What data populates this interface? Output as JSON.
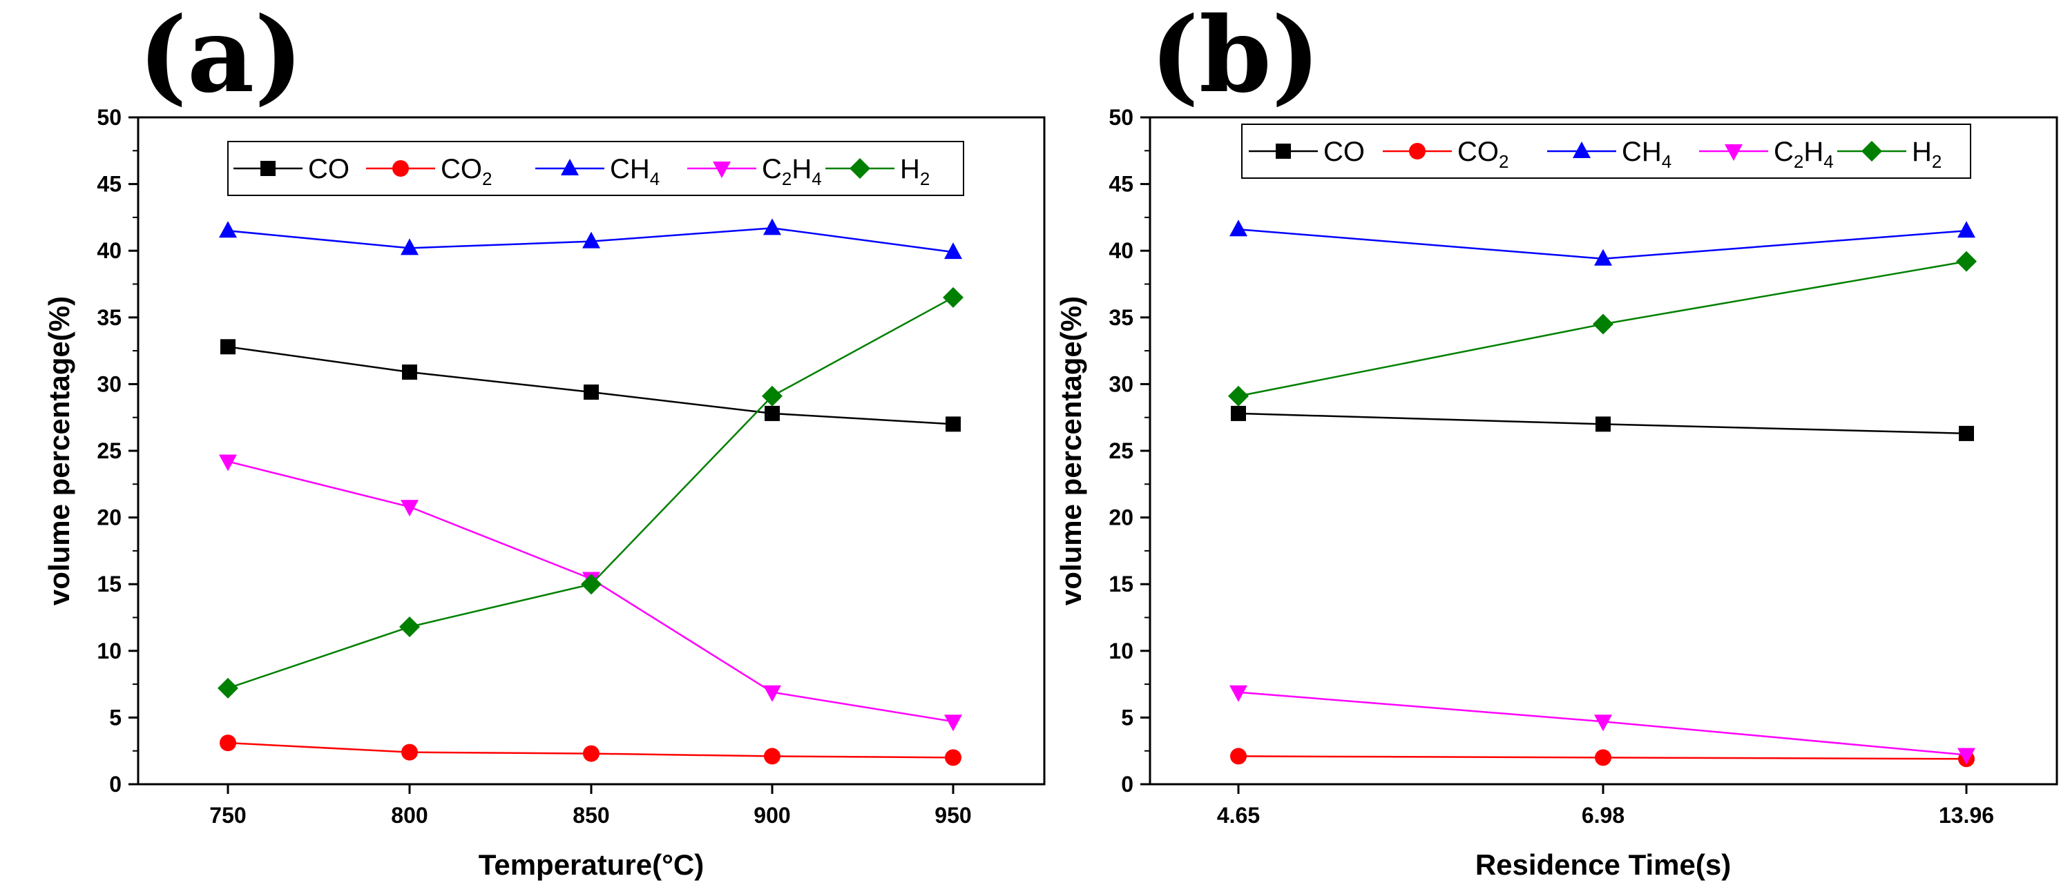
{
  "chart_data": [
    {
      "panel_label": "(a)",
      "type": "line",
      "xlabel": "Temperature(°C)",
      "ylabel": "volume percentage(%)",
      "categories": [
        "750",
        "800",
        "850",
        "900",
        "950"
      ],
      "ylim": [
        0,
        50
      ],
      "yticks": [
        "0",
        "5",
        "10",
        "15",
        "20",
        "25",
        "30",
        "35",
        "40",
        "45",
        "50"
      ],
      "legend_position": "top-center",
      "series": [
        {
          "name": "CO",
          "sub": "",
          "name2": "",
          "sub2": "",
          "color": "#000000",
          "marker": "square",
          "values": [
            32.8,
            30.9,
            29.4,
            27.8,
            27.0
          ]
        },
        {
          "name": "CO",
          "sub": "2",
          "name2": "",
          "sub2": "",
          "color": "#ff0000",
          "marker": "circle",
          "values": [
            3.1,
            2.4,
            2.3,
            2.1,
            2.0
          ]
        },
        {
          "name": "CH",
          "sub": "4",
          "name2": "",
          "sub2": "",
          "color": "#0000ff",
          "marker": "triangle-up",
          "values": [
            41.5,
            40.2,
            40.7,
            41.7,
            39.9
          ]
        },
        {
          "name": "C",
          "sub": "2",
          "name2": "H",
          "sub2": "4",
          "color": "#ff00ff",
          "marker": "triangle-down",
          "values": [
            24.2,
            20.8,
            15.4,
            6.9,
            4.7
          ]
        },
        {
          "name": "H",
          "sub": "2",
          "name2": "",
          "sub2": "",
          "color": "#008000",
          "marker": "diamond",
          "values": [
            7.2,
            11.8,
            15.0,
            29.1,
            36.5
          ]
        }
      ]
    },
    {
      "panel_label": "(b)",
      "type": "line",
      "xlabel": "Residence Time(s)",
      "ylabel": "volume percentage(%)",
      "categories": [
        "4.65",
        "6.98",
        "13.96"
      ],
      "ylim": [
        0,
        50
      ],
      "yticks": [
        "0",
        "5",
        "10",
        "15",
        "20",
        "25",
        "30",
        "35",
        "40",
        "45",
        "50"
      ],
      "legend_position": "top-center",
      "series": [
        {
          "name": "CO",
          "sub": "",
          "name2": "",
          "sub2": "",
          "color": "#000000",
          "marker": "square",
          "values": [
            27.8,
            27.0,
            26.3
          ]
        },
        {
          "name": "CO",
          "sub": "2",
          "name2": "",
          "sub2": "",
          "color": "#ff0000",
          "marker": "circle",
          "values": [
            2.1,
            2.0,
            1.9
          ]
        },
        {
          "name": "CH",
          "sub": "4",
          "name2": "",
          "sub2": "",
          "color": "#0000ff",
          "marker": "triangle-up",
          "values": [
            41.6,
            39.4,
            41.5
          ]
        },
        {
          "name": "C",
          "sub": "2",
          "name2": "H",
          "sub2": "4",
          "color": "#ff00ff",
          "marker": "triangle-down",
          "values": [
            6.9,
            4.7,
            2.2
          ]
        },
        {
          "name": "H",
          "sub": "2",
          "name2": "",
          "sub2": "",
          "color": "#008000",
          "marker": "diamond",
          "values": [
            29.1,
            34.5,
            39.2
          ]
        }
      ]
    }
  ]
}
